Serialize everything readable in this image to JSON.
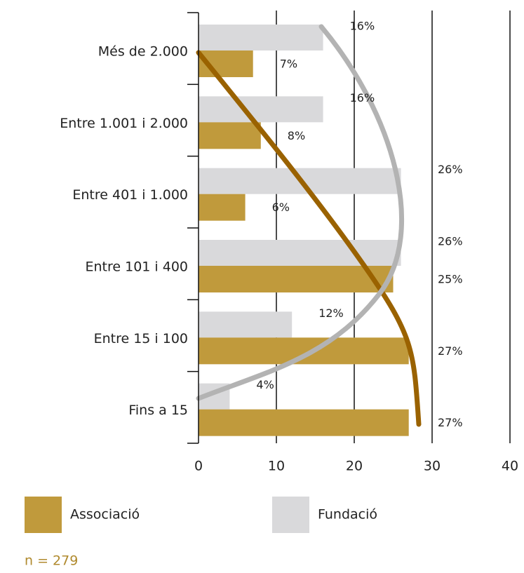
{
  "chart_data": {
    "type": "bar",
    "orientation": "horizontal",
    "categories": [
      "Més de 2.000",
      "Entre 1.001 i 2.000",
      "Entre 401 i 1.000",
      "Entre 101 i 400",
      "Entre 15 i 100",
      "Fins a 15"
    ],
    "series": [
      {
        "name": "Associació",
        "color": "#c09a3c",
        "values": [
          7,
          8,
          6,
          25,
          27,
          27
        ],
        "value_labels": [
          "7%",
          "8%",
          "6%",
          "25%",
          "27%",
          "27%"
        ]
      },
      {
        "name": "Fundació",
        "color": "#d9d9db",
        "values": [
          16,
          16,
          26,
          26,
          12,
          4
        ],
        "value_labels": [
          "16%",
          "16%",
          "26%",
          "26%",
          "12%",
          "4%"
        ]
      }
    ],
    "xlim": [
      0,
      40
    ],
    "xticks": [
      0,
      10,
      20,
      30,
      40
    ],
    "grid": true,
    "legend": "bottom",
    "note": "n = 279"
  }
}
